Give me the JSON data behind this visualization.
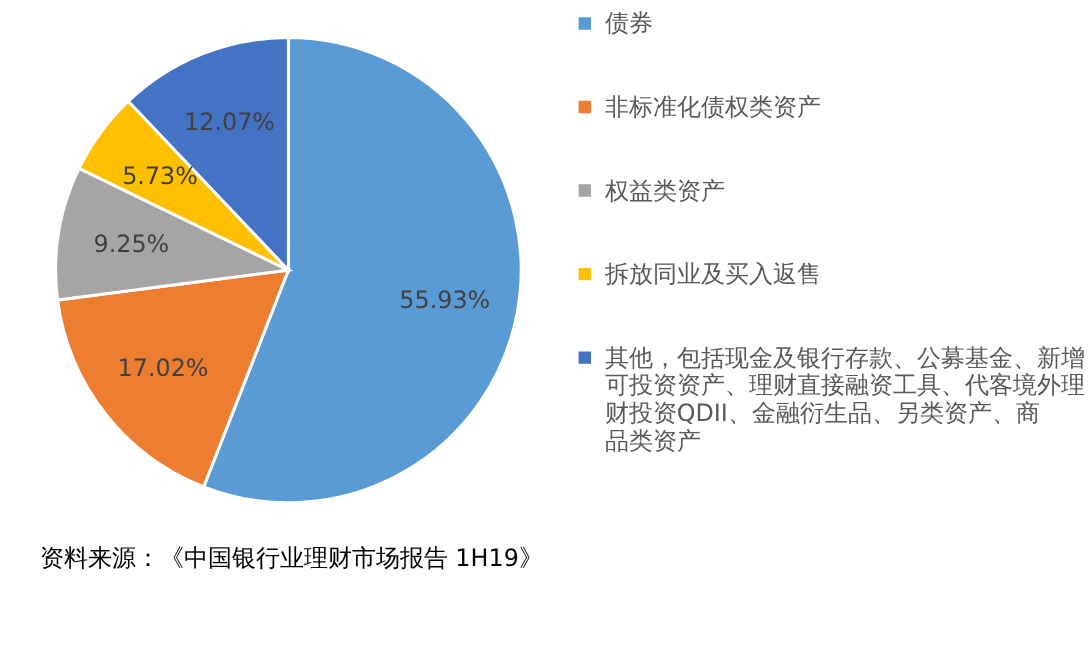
{
  "chart_data": {
    "type": "pie",
    "categories": [
      "债券",
      "非标准化债权类资产",
      "权益类资产",
      "拆放同业及买入返售",
      "其他，包括现金及银行存款、公募基金、新增可投资资产、理财直接融资工具、代客境外理财投资QDII、金融衍生品、另类资产、商品类资产"
    ],
    "values": [
      55.93,
      17.02,
      9.25,
      5.73,
      12.07
    ],
    "value_labels": [
      "55.93%",
      "17.02%",
      "9.25%",
      "5.73%",
      "12.07%"
    ],
    "colors": [
      "#5b9bd5",
      "#ed7d31",
      "#a5a5a5",
      "#ffc000",
      "#4472c4"
    ],
    "legend": "right",
    "annotations": [
      "资料来源：《中国银行业理财市场报告 1H19》"
    ]
  }
}
